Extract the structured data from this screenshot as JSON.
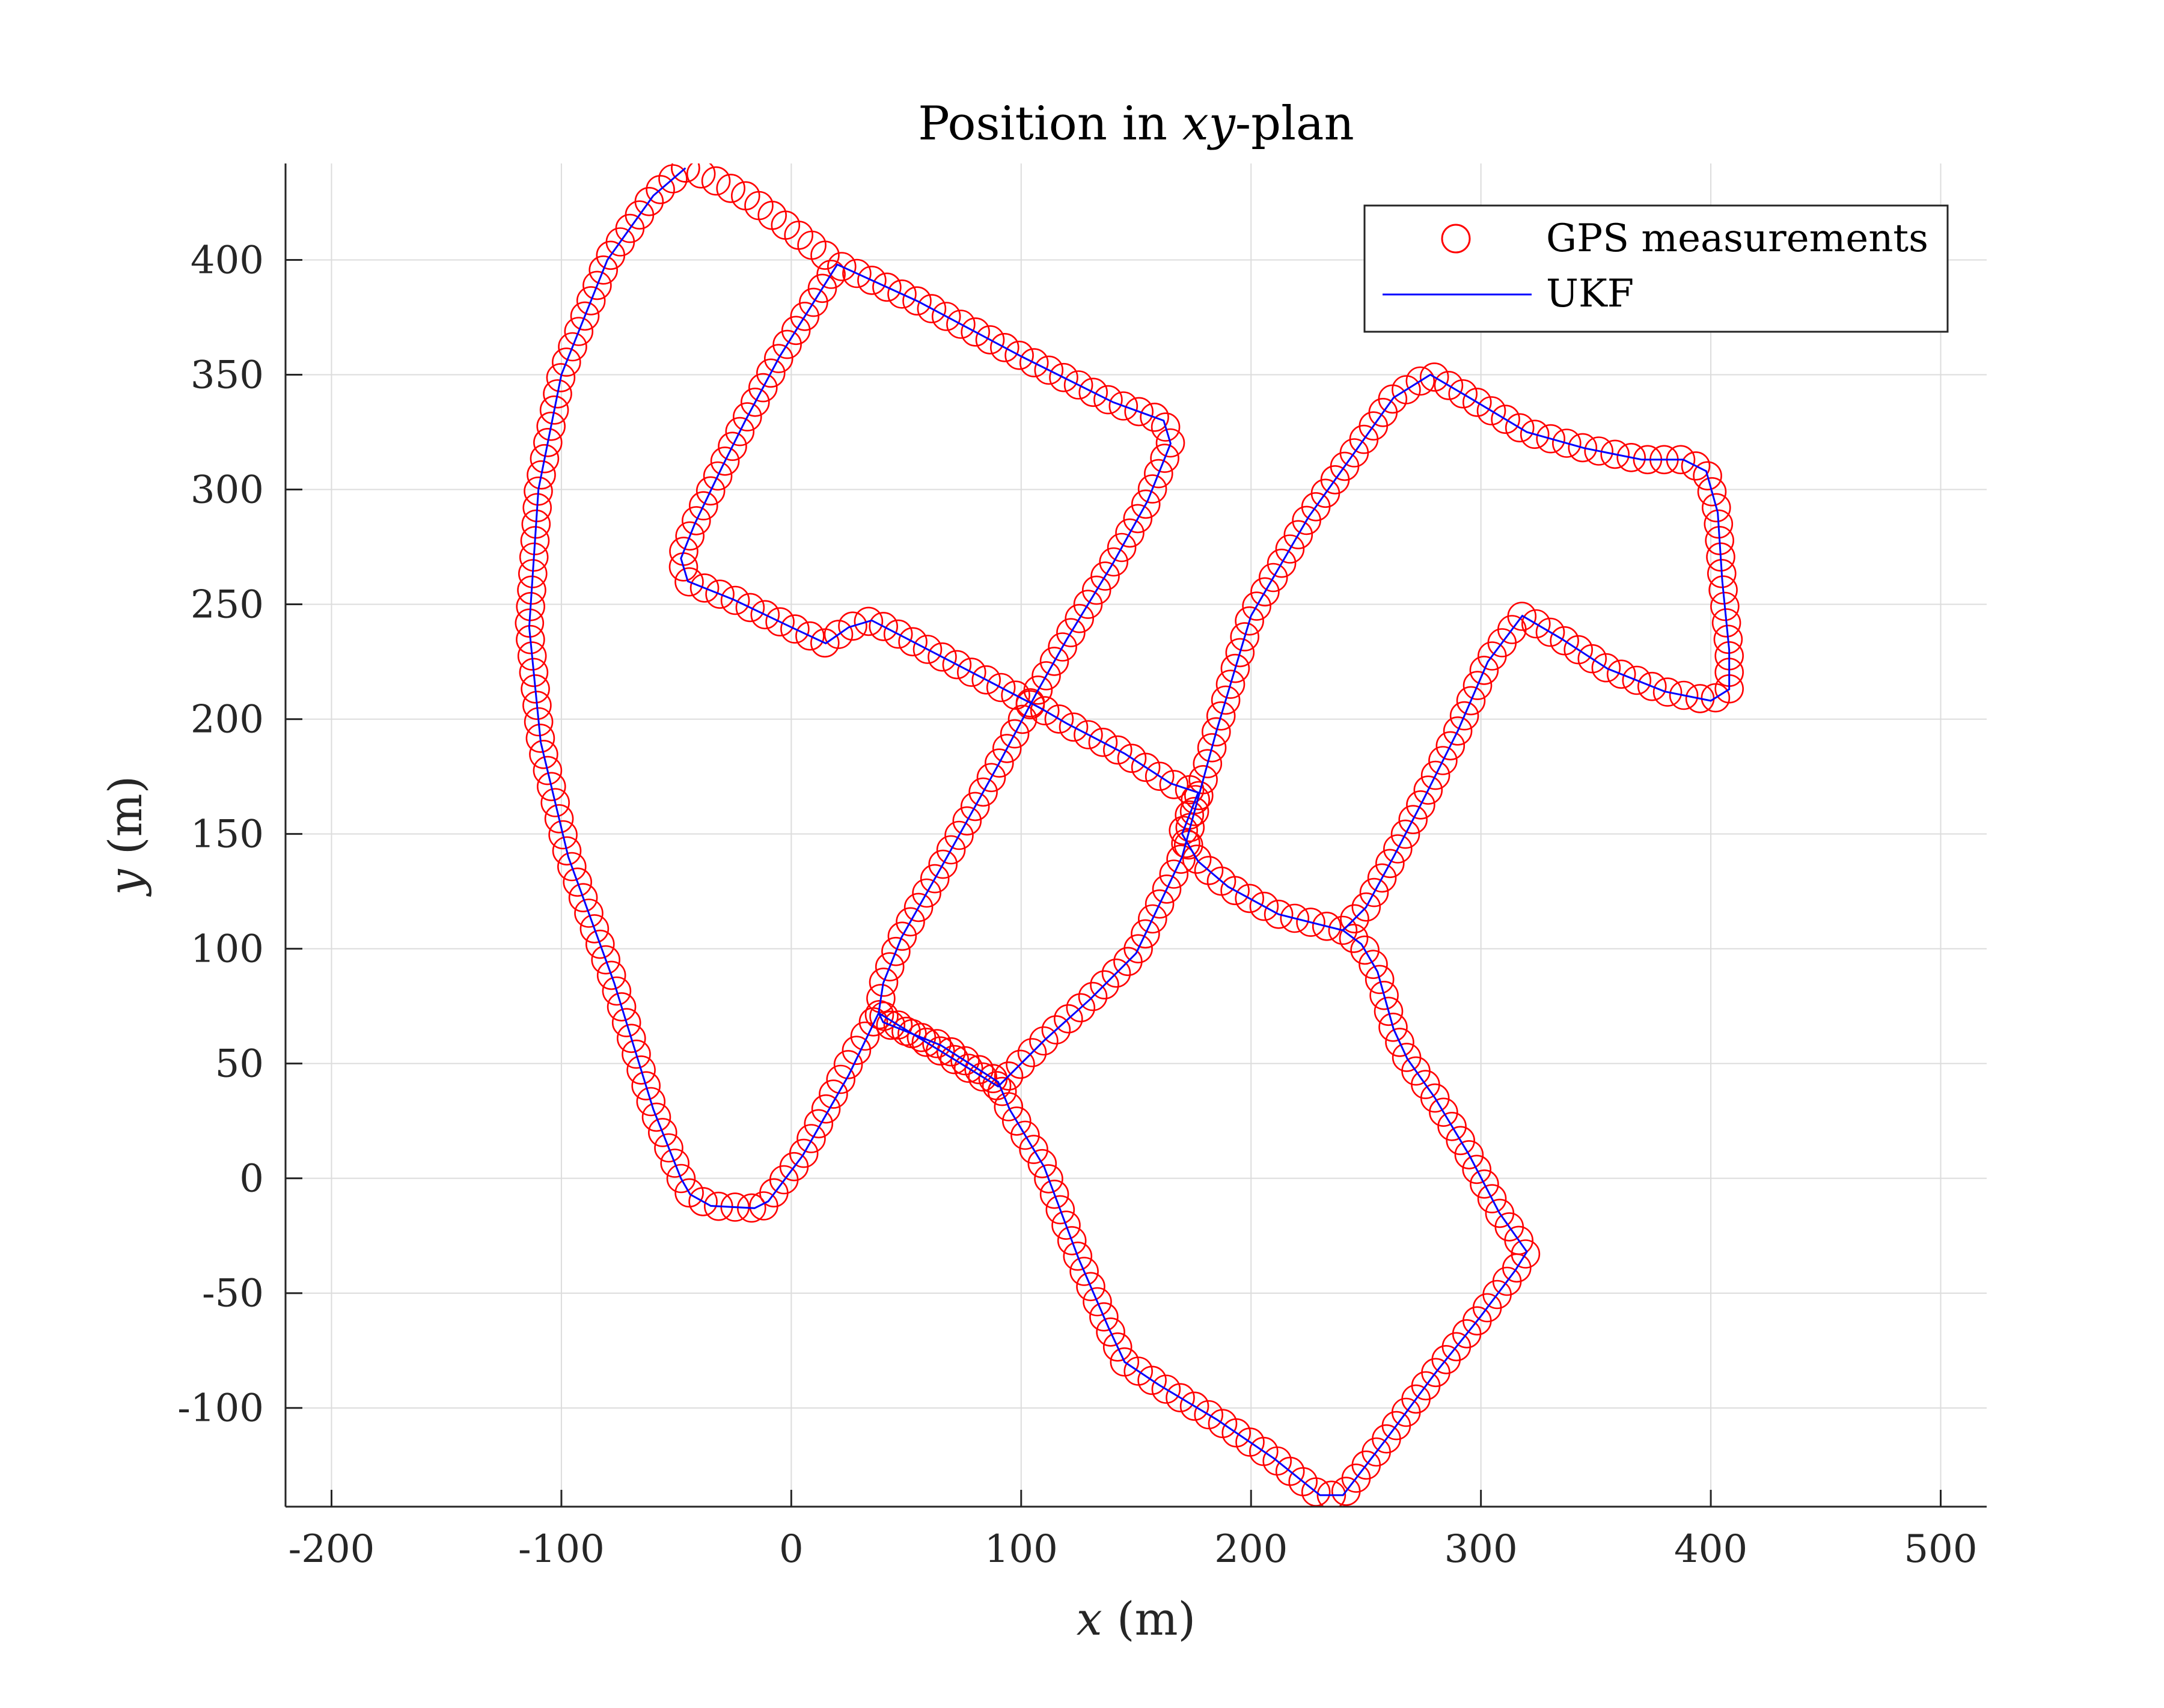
{
  "chart_data": {
    "type": "scatter",
    "title": {
      "prefix": "Position in ",
      "math": "xy",
      "suffix": "-plan"
    },
    "xlabel": {
      "math": "x",
      "rest": " (m)"
    },
    "ylabel": {
      "math": "y",
      "rest": " (m)"
    },
    "xlim": [
      -220,
      520
    ],
    "ylim": [
      -143,
      442
    ],
    "xticks": [
      -200,
      -100,
      0,
      100,
      200,
      300,
      400,
      500
    ],
    "yticks": [
      -100,
      -50,
      0,
      50,
      100,
      150,
      200,
      250,
      300,
      350,
      400
    ],
    "xtick_labels": [
      "-200",
      "-100",
      "0",
      "100",
      "200",
      "300",
      "400",
      "500"
    ],
    "ytick_labels": [
      "-100",
      "-50",
      "0",
      "50",
      "100",
      "150",
      "200",
      "250",
      "300",
      "350",
      "400"
    ],
    "grid": true,
    "legend_position": "top-right",
    "colors": {
      "gps": "#ff0000",
      "ukf": "#0000ff",
      "axis": "#262626",
      "grid": "#dcdcdc"
    },
    "series": [
      {
        "name": "GPS measurements",
        "marker": "circle-open",
        "spacing_m": 7.2,
        "path": [
          [
            -12,
            -12
          ],
          [
            -5,
            -3
          ],
          [
            5,
            10
          ],
          [
            15,
            30
          ],
          [
            25,
            50
          ],
          [
            38,
            72
          ],
          [
            90,
            40
          ],
          [
            110,
            60
          ],
          [
            130,
            78
          ],
          [
            150,
            98
          ],
          [
            170,
            140
          ],
          [
            185,
            195
          ],
          [
            200,
            245
          ],
          [
            225,
            288
          ],
          [
            262,
            340
          ],
          [
            278,
            350
          ],
          [
            295,
            340
          ],
          [
            320,
            325
          ],
          [
            345,
            318
          ],
          [
            370,
            313
          ],
          [
            388,
            313
          ],
          [
            398,
            308
          ],
          [
            403,
            290
          ],
          [
            405,
            260
          ],
          [
            408,
            230
          ],
          [
            408,
            213
          ],
          [
            400,
            208
          ],
          [
            380,
            212
          ],
          [
            355,
            222
          ],
          [
            335,
            235
          ],
          [
            318,
            245
          ],
          [
            303,
            225
          ],
          [
            290,
            195
          ],
          [
            275,
            165
          ],
          [
            262,
            140
          ],
          [
            250,
            118
          ],
          [
            240,
            108
          ],
          [
            212,
            115
          ],
          [
            190,
            127
          ],
          [
            177,
            138
          ],
          [
            170,
            150
          ],
          [
            177,
            168
          ],
          [
            165,
            172
          ],
          [
            145,
            185
          ],
          [
            120,
            198
          ],
          [
            108,
            205
          ],
          [
            85,
            217
          ],
          [
            60,
            230
          ],
          [
            35,
            243
          ],
          [
            25,
            240
          ],
          [
            15,
            233
          ],
          [
            0,
            240
          ],
          [
            -25,
            252
          ],
          [
            -45,
            260
          ],
          [
            -48,
            270
          ],
          [
            -42,
            285
          ],
          [
            -30,
            310
          ],
          [
            -20,
            330
          ],
          [
            -5,
            358
          ],
          [
            10,
            382
          ],
          [
            20,
            398
          ],
          [
            55,
            382
          ],
          [
            100,
            358
          ],
          [
            140,
            338
          ],
          [
            162,
            330
          ],
          [
            165,
            320
          ],
          [
            155,
            295
          ],
          [
            140,
            268
          ],
          [
            120,
            235
          ],
          [
            107,
            212
          ],
          [
            90,
            180
          ],
          [
            65,
            135
          ],
          [
            48,
            105
          ],
          [
            40,
            85
          ],
          [
            38,
            72
          ],
          [
            40,
            68
          ],
          [
            65,
            58
          ],
          [
            90,
            42
          ],
          [
            95,
            30
          ],
          [
            110,
            5
          ],
          [
            125,
            -35
          ],
          [
            138,
            -65
          ],
          [
            145,
            -80
          ],
          [
            160,
            -90
          ],
          [
            185,
            -105
          ],
          [
            210,
            -122
          ],
          [
            230,
            -138
          ],
          [
            240,
            -138
          ],
          [
            260,
            -112
          ],
          [
            280,
            -85
          ],
          [
            300,
            -60
          ],
          [
            315,
            -40
          ],
          [
            320,
            -32
          ],
          [
            308,
            -15
          ],
          [
            295,
            10
          ],
          [
            280,
            35
          ],
          [
            268,
            52
          ],
          [
            262,
            65
          ],
          [
            255,
            90
          ],
          [
            248,
            102
          ],
          [
            240,
            108
          ]
        ]
      },
      {
        "name": "UKF",
        "marker": "line",
        "path": [
          [
            -46,
            440
          ],
          [
            -60,
            428
          ],
          [
            -80,
            400
          ],
          [
            -100,
            350
          ],
          [
            -110,
            300
          ],
          [
            -114,
            240
          ],
          [
            -109,
            190
          ],
          [
            -97,
            140
          ],
          [
            -77,
            85
          ],
          [
            -60,
            30
          ],
          [
            -48,
            0
          ],
          [
            -44,
            -7
          ],
          [
            -35,
            -12
          ],
          [
            -16,
            -13
          ],
          [
            -10,
            -10
          ],
          [
            5,
            10
          ],
          [
            25,
            45
          ],
          [
            38,
            72
          ],
          [
            90,
            40
          ],
          [
            110,
            60
          ],
          [
            130,
            78
          ],
          [
            150,
            98
          ],
          [
            170,
            140
          ],
          [
            185,
            195
          ],
          [
            200,
            245
          ],
          [
            225,
            288
          ],
          [
            262,
            340
          ],
          [
            278,
            350
          ],
          [
            295,
            340
          ],
          [
            320,
            325
          ],
          [
            345,
            318
          ],
          [
            370,
            313
          ],
          [
            388,
            313
          ],
          [
            398,
            308
          ],
          [
            403,
            290
          ],
          [
            405,
            260
          ],
          [
            408,
            230
          ],
          [
            408,
            213
          ],
          [
            400,
            208
          ],
          [
            380,
            212
          ],
          [
            355,
            222
          ],
          [
            335,
            235
          ],
          [
            318,
            245
          ],
          [
            303,
            225
          ],
          [
            290,
            195
          ],
          [
            275,
            165
          ],
          [
            262,
            140
          ],
          [
            250,
            118
          ],
          [
            240,
            108
          ],
          [
            212,
            115
          ],
          [
            190,
            127
          ],
          [
            177,
            138
          ],
          [
            170,
            150
          ],
          [
            177,
            168
          ],
          [
            165,
            172
          ],
          [
            145,
            185
          ],
          [
            120,
            198
          ],
          [
            108,
            205
          ],
          [
            85,
            217
          ],
          [
            60,
            230
          ],
          [
            35,
            243
          ],
          [
            25,
            240
          ],
          [
            15,
            233
          ],
          [
            0,
            240
          ],
          [
            -25,
            252
          ],
          [
            -45,
            260
          ],
          [
            -48,
            270
          ],
          [
            -42,
            285
          ],
          [
            -30,
            310
          ],
          [
            -20,
            330
          ],
          [
            -5,
            358
          ],
          [
            10,
            382
          ],
          [
            20,
            398
          ],
          [
            55,
            382
          ],
          [
            100,
            358
          ],
          [
            140,
            338
          ],
          [
            162,
            330
          ],
          [
            165,
            320
          ],
          [
            155,
            295
          ],
          [
            140,
            268
          ],
          [
            120,
            235
          ],
          [
            107,
            212
          ],
          [
            90,
            180
          ],
          [
            65,
            135
          ],
          [
            48,
            105
          ],
          [
            40,
            85
          ],
          [
            38,
            72
          ],
          [
            40,
            68
          ],
          [
            65,
            58
          ],
          [
            90,
            42
          ],
          [
            95,
            30
          ],
          [
            110,
            5
          ],
          [
            125,
            -35
          ],
          [
            138,
            -65
          ],
          [
            145,
            -80
          ],
          [
            160,
            -90
          ],
          [
            185,
            -105
          ],
          [
            210,
            -122
          ],
          [
            230,
            -138
          ],
          [
            240,
            -138
          ],
          [
            260,
            -112
          ],
          [
            280,
            -85
          ],
          [
            300,
            -60
          ],
          [
            315,
            -40
          ],
          [
            320,
            -32
          ],
          [
            308,
            -15
          ],
          [
            295,
            10
          ],
          [
            280,
            35
          ],
          [
            268,
            52
          ],
          [
            262,
            65
          ],
          [
            255,
            90
          ],
          [
            248,
            102
          ],
          [
            240,
            108
          ]
        ]
      }
    ],
    "extra_gps_path": [
      [
        -46,
        440
      ],
      [
        -60,
        428
      ],
      [
        -80,
        400
      ],
      [
        -100,
        350
      ],
      [
        -110,
        300
      ],
      [
        -114,
        240
      ],
      [
        -109,
        190
      ],
      [
        -97,
        140
      ],
      [
        -77,
        85
      ],
      [
        -60,
        30
      ],
      [
        -48,
        0
      ],
      [
        -44,
        -7
      ],
      [
        -35,
        -12
      ],
      [
        -16,
        -13
      ],
      [
        -12,
        -12
      ]
    ],
    "extra_gps_top": [
      [
        -46,
        440
      ],
      [
        -38,
        437
      ],
      [
        -20,
        428
      ],
      [
        -5,
        417
      ],
      [
        20,
        398
      ]
    ]
  }
}
